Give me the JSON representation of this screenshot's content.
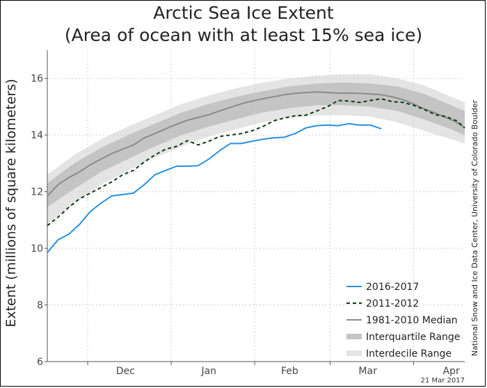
{
  "chart_data": {
    "type": "line",
    "title": "Arctic Sea Ice Extent",
    "subtitle": "(Area of ocean with at least 15% sea ice)",
    "ylabel": "Extent (millions of square kilometers)",
    "xlabel": "",
    "ylim": [
      6,
      17
    ],
    "yticks": [
      6,
      8,
      10,
      12,
      14,
      16
    ],
    "xlim": [
      "2016-11-16",
      "2017-04-20"
    ],
    "month_ticks": [
      "2016-12-01",
      "2017-01-01",
      "2017-02-01",
      "2017-03-01",
      "2017-04-01",
      "2017-05-01"
    ],
    "month_labels": [
      {
        "label": "Dec",
        "date": "2016-12-15"
      },
      {
        "label": "Jan",
        "date": "2017-01-15"
      },
      {
        "label": "Feb",
        "date": "2017-02-14"
      },
      {
        "label": "Mar",
        "date": "2017-03-15"
      },
      {
        "label": "Apr",
        "date": "2017-04-15"
      }
    ],
    "grid": true,
    "legend_position": "bottom-right",
    "credit": "National Snow and Ice Data Center, University of Colorado Boulder",
    "date_stamp": "21 Mar 2017",
    "series": [
      {
        "name": "2016-2017",
        "style": "solid",
        "color": "#2590e0",
        "x": [
          "2016-11-16",
          "2016-11-20",
          "2016-11-24",
          "2016-11-28",
          "2016-12-02",
          "2016-12-06",
          "2016-12-10",
          "2016-12-14",
          "2016-12-18",
          "2016-12-22",
          "2016-12-26",
          "2016-12-30",
          "2017-01-03",
          "2017-01-07",
          "2017-01-11",
          "2017-01-15",
          "2017-01-19",
          "2017-01-23",
          "2017-01-27",
          "2017-01-31",
          "2017-02-04",
          "2017-02-08",
          "2017-02-12",
          "2017-02-16",
          "2017-02-20",
          "2017-02-24",
          "2017-02-28",
          "2017-03-04",
          "2017-03-08",
          "2017-03-12",
          "2017-03-16",
          "2017-03-20"
        ],
        "y": [
          9.85,
          10.3,
          10.5,
          10.85,
          11.3,
          11.6,
          11.85,
          11.9,
          11.95,
          12.25,
          12.6,
          12.75,
          12.9,
          12.9,
          12.92,
          13.15,
          13.45,
          13.7,
          13.7,
          13.78,
          13.85,
          13.9,
          13.92,
          14.05,
          14.25,
          14.33,
          14.35,
          14.33,
          14.4,
          14.35,
          14.35,
          14.22
        ]
      },
      {
        "name": "2011-2012",
        "style": "dashed",
        "color": "#0d3a12",
        "x": [
          "2016-11-16",
          "2016-11-20",
          "2016-11-24",
          "2016-11-28",
          "2016-12-02",
          "2016-12-06",
          "2016-12-10",
          "2016-12-14",
          "2016-12-18",
          "2016-12-22",
          "2016-12-26",
          "2016-12-30",
          "2017-01-03",
          "2017-01-07",
          "2017-01-11",
          "2017-01-15",
          "2017-01-19",
          "2017-01-23",
          "2017-01-27",
          "2017-01-31",
          "2017-02-04",
          "2017-02-08",
          "2017-02-12",
          "2017-02-16",
          "2017-02-20",
          "2017-02-24",
          "2017-02-28",
          "2017-03-04",
          "2017-03-08",
          "2017-03-12",
          "2017-03-16",
          "2017-03-20",
          "2017-03-24",
          "2017-03-28",
          "2017-04-01",
          "2017-04-05",
          "2017-04-09",
          "2017-04-13",
          "2017-04-17",
          "2017-04-20"
        ],
        "y": [
          10.8,
          11.1,
          11.45,
          11.75,
          11.95,
          12.15,
          12.35,
          12.6,
          12.75,
          13.05,
          13.3,
          13.5,
          13.6,
          13.8,
          13.65,
          13.78,
          13.95,
          14.0,
          14.05,
          14.15,
          14.3,
          14.5,
          14.6,
          14.68,
          14.7,
          14.85,
          15.0,
          15.22,
          15.2,
          15.15,
          15.22,
          15.28,
          15.18,
          15.15,
          15.05,
          14.9,
          14.72,
          14.65,
          14.5,
          14.25
        ]
      },
      {
        "name": "1981-2010 Median",
        "style": "solid",
        "color": "#8a8a8a",
        "x": [
          "2016-11-16",
          "2016-11-20",
          "2016-11-24",
          "2016-11-28",
          "2016-12-02",
          "2016-12-06",
          "2016-12-10",
          "2016-12-14",
          "2016-12-18",
          "2016-12-22",
          "2016-12-26",
          "2016-12-30",
          "2017-01-03",
          "2017-01-07",
          "2017-01-11",
          "2017-01-15",
          "2017-01-19",
          "2017-01-23",
          "2017-01-27",
          "2017-01-31",
          "2017-02-04",
          "2017-02-08",
          "2017-02-12",
          "2017-02-16",
          "2017-02-20",
          "2017-02-24",
          "2017-02-28",
          "2017-03-04",
          "2017-03-08",
          "2017-03-12",
          "2017-03-16",
          "2017-03-20",
          "2017-03-24",
          "2017-03-28",
          "2017-04-01",
          "2017-04-05",
          "2017-04-09",
          "2017-04-13",
          "2017-04-17",
          "2017-04-20"
        ],
        "y": [
          11.85,
          12.25,
          12.5,
          12.7,
          12.95,
          13.15,
          13.35,
          13.5,
          13.65,
          13.9,
          14.05,
          14.22,
          14.38,
          14.52,
          14.62,
          14.72,
          14.85,
          14.98,
          15.1,
          15.2,
          15.28,
          15.35,
          15.42,
          15.47,
          15.5,
          15.52,
          15.5,
          15.48,
          15.48,
          15.47,
          15.45,
          15.42,
          15.35,
          15.25,
          15.1,
          14.92,
          14.78,
          14.62,
          14.45,
          14.25
        ]
      },
      {
        "name": "Interquartile Range",
        "style": "band",
        "color": "#c4c4c4",
        "x": [
          "2016-11-16",
          "2016-11-26",
          "2016-12-06",
          "2016-12-16",
          "2016-12-26",
          "2017-01-05",
          "2017-01-15",
          "2017-01-25",
          "2017-02-04",
          "2017-02-14",
          "2017-02-24",
          "2017-03-06",
          "2017-03-16",
          "2017-03-26",
          "2017-04-05",
          "2017-04-15",
          "2017-04-20"
        ],
        "low": [
          11.45,
          12.1,
          12.7,
          13.15,
          13.6,
          14.0,
          14.3,
          14.55,
          14.8,
          14.95,
          15.05,
          15.05,
          15.0,
          14.85,
          14.55,
          14.2,
          14.0
        ],
        "high": [
          12.3,
          13.0,
          13.55,
          14.0,
          14.4,
          14.8,
          15.1,
          15.35,
          15.55,
          15.72,
          15.82,
          15.85,
          15.82,
          15.72,
          15.45,
          15.05,
          14.85
        ]
      },
      {
        "name": "Interdecile Range",
        "style": "band",
        "color": "#e4e4e4",
        "x": [
          "2016-11-16",
          "2016-11-26",
          "2016-12-06",
          "2016-12-16",
          "2016-12-26",
          "2017-01-05",
          "2017-01-15",
          "2017-01-25",
          "2017-02-04",
          "2017-02-14",
          "2017-02-24",
          "2017-03-06",
          "2017-03-16",
          "2017-03-26",
          "2017-04-05",
          "2017-04-15",
          "2017-04-20"
        ],
        "low": [
          10.85,
          11.6,
          12.25,
          12.75,
          13.2,
          13.6,
          13.95,
          14.2,
          14.45,
          14.6,
          14.7,
          14.7,
          14.65,
          14.45,
          14.15,
          13.85,
          13.7
        ],
        "high": [
          12.6,
          13.3,
          13.85,
          14.3,
          14.7,
          15.1,
          15.4,
          15.65,
          15.85,
          16.0,
          16.1,
          16.15,
          16.15,
          16.0,
          15.75,
          15.35,
          15.15
        ]
      }
    ]
  }
}
